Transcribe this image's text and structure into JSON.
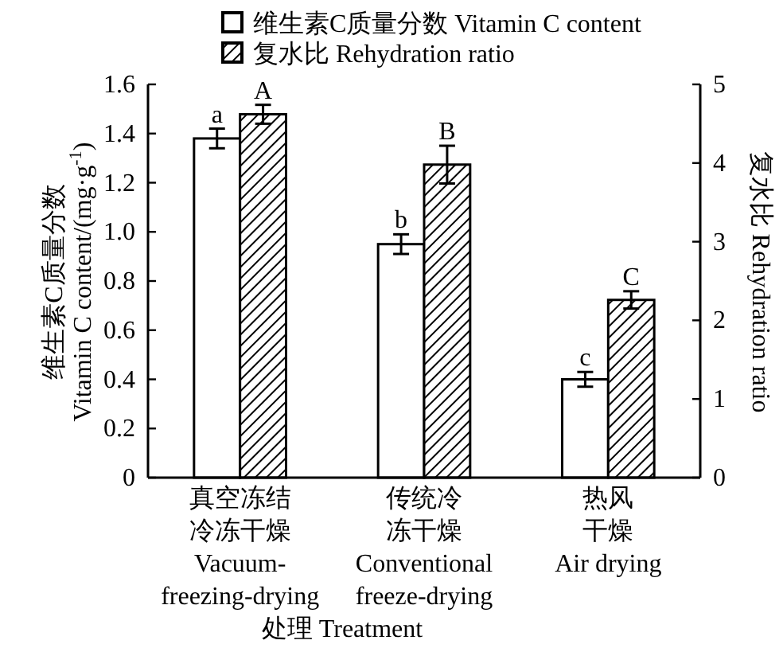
{
  "chart_data": {
    "type": "bar",
    "categories": [
      "真空冻结冷冻干燥 Vacuum-freezing-drying",
      "传统冷冻干燥 Conventional freeze-drying",
      "热风干燥 Air drying"
    ],
    "series": [
      {
        "name": "维生素C质量分数 Vitamin C content",
        "color": "#ffffff",
        "values": [
          1.38,
          0.95,
          0.4
        ],
        "errors": [
          0.04,
          0.04,
          0.03
        ],
        "value_labels": [
          "a",
          "b",
          "c"
        ]
      },
      {
        "name": "复水比 Rehydration ratio",
        "color": "#000000",
        "axis": "y2",
        "values": [
          4.62,
          3.98,
          2.26
        ],
        "errors": [
          0.12,
          0.24,
          0.11
        ],
        "value_labels": [
          "A",
          "B",
          "C"
        ]
      }
    ],
    "xlabel": "处理 Treatment",
    "ylabel": "维生素C质量分数\nVitamin C content/(mg·g$^{-1}$)",
    "y2label": "复水比 Rehydration ratio",
    "ylim": [
      0,
      1.6
    ],
    "yticks": [
      0,
      0.2,
      0.4,
      0.6,
      0.8,
      {
        "value": 1,
        "label": "1.0"
      },
      1.2,
      1.4,
      1.6
    ],
    "y2lim": [
      0,
      5
    ],
    "y2ticks": [
      0,
      1,
      2,
      3,
      4,
      5
    ],
    "legend": "top",
    "grid": false
  }
}
